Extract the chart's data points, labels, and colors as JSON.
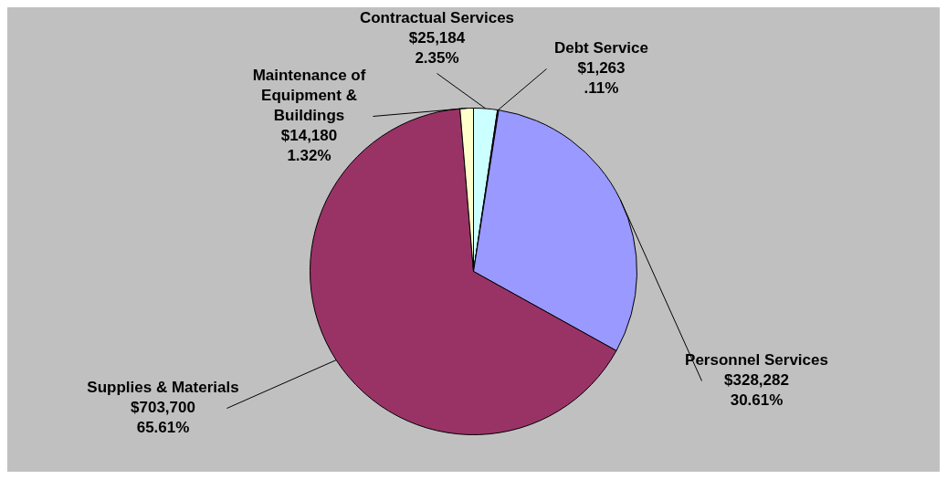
{
  "chart_data": {
    "type": "pie",
    "categories": [
      "Contractual Services",
      "Debt Service",
      "Personnel Services",
      "Supplies & Materials",
      "Maintenance of Equipment & Buildings"
    ],
    "values": [
      25184,
      1263,
      328282,
      703700,
      14180
    ],
    "colors": [
      "#ccffff",
      "#660066",
      "#9999ff",
      "#993366",
      "#ffffcc"
    ],
    "value_labels": [
      "$25,184\n2.35%",
      "$1,263\n.11%",
      "$328,282\n30.61%",
      "$703,700\n65.61%",
      "$14,180\n1.32%"
    ],
    "legend": false
  }
}
